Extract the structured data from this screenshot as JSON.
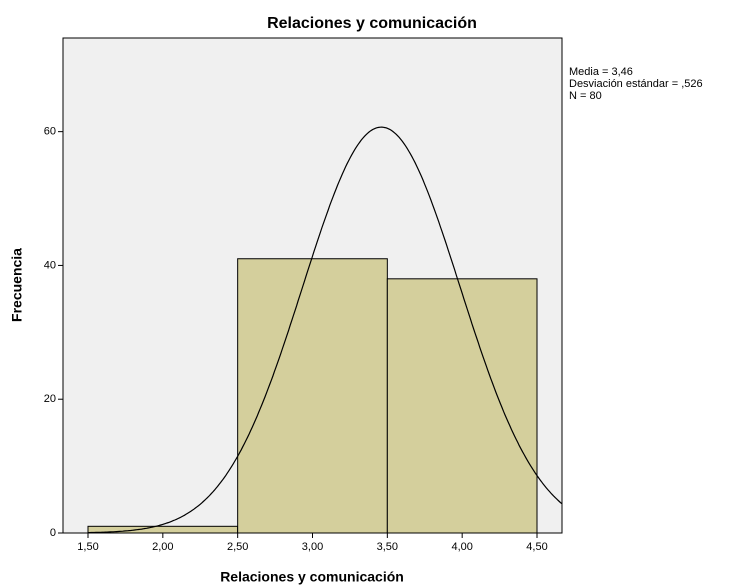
{
  "chart_data": {
    "type": "histogram",
    "title": "Relaciones y comunicación",
    "xlabel": "Relaciones y comunicación",
    "ylabel": "Frecuencia",
    "bins": [
      1.5,
      2.5,
      3.5,
      4.5
    ],
    "counts": [
      1,
      41,
      38
    ],
    "color": "#d4cf9c",
    "xlim": [
      1.333,
      4.667
    ],
    "ylim": [
      0,
      74
    ],
    "xticks": [
      {
        "value": 1.5,
        "label": "1,50"
      },
      {
        "value": 2,
        "label": "2,00"
      },
      {
        "value": 2.5,
        "label": "2,50"
      },
      {
        "value": 3,
        "label": "3,00"
      },
      {
        "value": 3.5,
        "label": "3,50"
      },
      {
        "value": 4,
        "label": "4,00"
      },
      {
        "value": 4.5,
        "label": "4,50"
      }
    ],
    "yticks": [
      0,
      20,
      40,
      60
    ],
    "stats": {
      "mean": {
        "value": 3.46,
        "label": "Media = 3,46"
      },
      "sd": {
        "value": 0.526,
        "label": "Desviación estándar = ,526"
      },
      "n": {
        "value": 80,
        "label": "N = 80"
      }
    },
    "normal_curve": true
  }
}
